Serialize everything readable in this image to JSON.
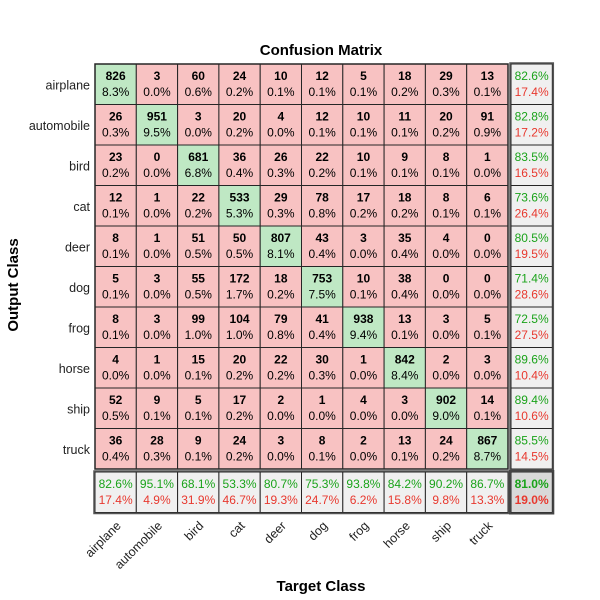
{
  "chart_data": {
    "type": "heatmap",
    "title": "Confusion Matrix",
    "xlabel": "Target Class",
    "ylabel": "Output Class",
    "classes": [
      "airplane",
      "automobile",
      "bird",
      "cat",
      "deer",
      "dog",
      "frog",
      "horse",
      "ship",
      "truck"
    ],
    "counts": [
      [
        826,
        3,
        60,
        24,
        10,
        12,
        5,
        18,
        29,
        13
      ],
      [
        26,
        951,
        3,
        20,
        4,
        12,
        10,
        11,
        20,
        91
      ],
      [
        23,
        0,
        681,
        36,
        26,
        22,
        10,
        9,
        8,
        1
      ],
      [
        12,
        1,
        22,
        533,
        29,
        78,
        17,
        18,
        8,
        6
      ],
      [
        8,
        1,
        51,
        50,
        807,
        43,
        3,
        35,
        4,
        0
      ],
      [
        5,
        3,
        55,
        172,
        18,
        753,
        10,
        38,
        0,
        0
      ],
      [
        8,
        3,
        99,
        104,
        79,
        41,
        938,
        13,
        3,
        5
      ],
      [
        4,
        1,
        15,
        20,
        22,
        30,
        1,
        842,
        2,
        3
      ],
      [
        52,
        9,
        5,
        17,
        2,
        1,
        4,
        3,
        902,
        14
      ],
      [
        36,
        28,
        9,
        24,
        3,
        8,
        2,
        13,
        24,
        867
      ]
    ],
    "percents": [
      [
        "8.3%",
        "0.0%",
        "0.6%",
        "0.2%",
        "0.1%",
        "0.1%",
        "0.1%",
        "0.2%",
        "0.3%",
        "0.1%"
      ],
      [
        "0.3%",
        "9.5%",
        "0.0%",
        "0.2%",
        "0.0%",
        "0.1%",
        "0.1%",
        "0.1%",
        "0.2%",
        "0.9%"
      ],
      [
        "0.2%",
        "0.0%",
        "6.8%",
        "0.4%",
        "0.3%",
        "0.2%",
        "0.1%",
        "0.1%",
        "0.1%",
        "0.0%"
      ],
      [
        "0.1%",
        "0.0%",
        "0.2%",
        "5.3%",
        "0.3%",
        "0.8%",
        "0.2%",
        "0.2%",
        "0.1%",
        "0.1%"
      ],
      [
        "0.1%",
        "0.0%",
        "0.5%",
        "0.5%",
        "8.1%",
        "0.4%",
        "0.0%",
        "0.4%",
        "0.0%",
        "0.0%"
      ],
      [
        "0.1%",
        "0.0%",
        "0.5%",
        "1.7%",
        "0.2%",
        "7.5%",
        "0.1%",
        "0.4%",
        "0.0%",
        "0.0%"
      ],
      [
        "0.1%",
        "0.0%",
        "1.0%",
        "1.0%",
        "0.8%",
        "0.4%",
        "9.4%",
        "0.1%",
        "0.0%",
        "0.1%"
      ],
      [
        "0.0%",
        "0.0%",
        "0.1%",
        "0.2%",
        "0.2%",
        "0.3%",
        "0.0%",
        "8.4%",
        "0.0%",
        "0.0%"
      ],
      [
        "0.5%",
        "0.1%",
        "0.1%",
        "0.2%",
        "0.0%",
        "0.0%",
        "0.0%",
        "0.0%",
        "9.0%",
        "0.1%"
      ],
      [
        "0.4%",
        "0.3%",
        "0.1%",
        "0.2%",
        "0.0%",
        "0.1%",
        "0.0%",
        "0.1%",
        "0.2%",
        "8.7%"
      ]
    ],
    "row_summary": [
      {
        "correct": "82.6%",
        "wrong": "17.4%"
      },
      {
        "correct": "82.8%",
        "wrong": "17.2%"
      },
      {
        "correct": "83.5%",
        "wrong": "16.5%"
      },
      {
        "correct": "73.6%",
        "wrong": "26.4%"
      },
      {
        "correct": "80.5%",
        "wrong": "19.5%"
      },
      {
        "correct": "71.4%",
        "wrong": "28.6%"
      },
      {
        "correct": "72.5%",
        "wrong": "27.5%"
      },
      {
        "correct": "89.6%",
        "wrong": "10.4%"
      },
      {
        "correct": "89.4%",
        "wrong": "10.6%"
      },
      {
        "correct": "85.5%",
        "wrong": "14.5%"
      }
    ],
    "col_summary": [
      {
        "correct": "82.6%",
        "wrong": "17.4%"
      },
      {
        "correct": "95.1%",
        "wrong": "4.9%"
      },
      {
        "correct": "68.1%",
        "wrong": "31.9%"
      },
      {
        "correct": "53.3%",
        "wrong": "46.7%"
      },
      {
        "correct": "80.7%",
        "wrong": "19.3%"
      },
      {
        "correct": "75.3%",
        "wrong": "24.7%"
      },
      {
        "correct": "93.8%",
        "wrong": "6.2%"
      },
      {
        "correct": "84.2%",
        "wrong": "15.8%"
      },
      {
        "correct": "90.2%",
        "wrong": "9.8%"
      },
      {
        "correct": "86.7%",
        "wrong": "13.3%"
      }
    ],
    "overall": {
      "correct": "81.0%",
      "wrong": "19.0%"
    },
    "colors": {
      "diagonal": "#bfe8c4",
      "off_diagonal": "#f8c2c2",
      "summary": "#f0f0f0",
      "overall": "#d9d9d9",
      "correct_text": "#1aa31a",
      "wrong_text": "#e8382e",
      "grid": "#262626"
    }
  }
}
